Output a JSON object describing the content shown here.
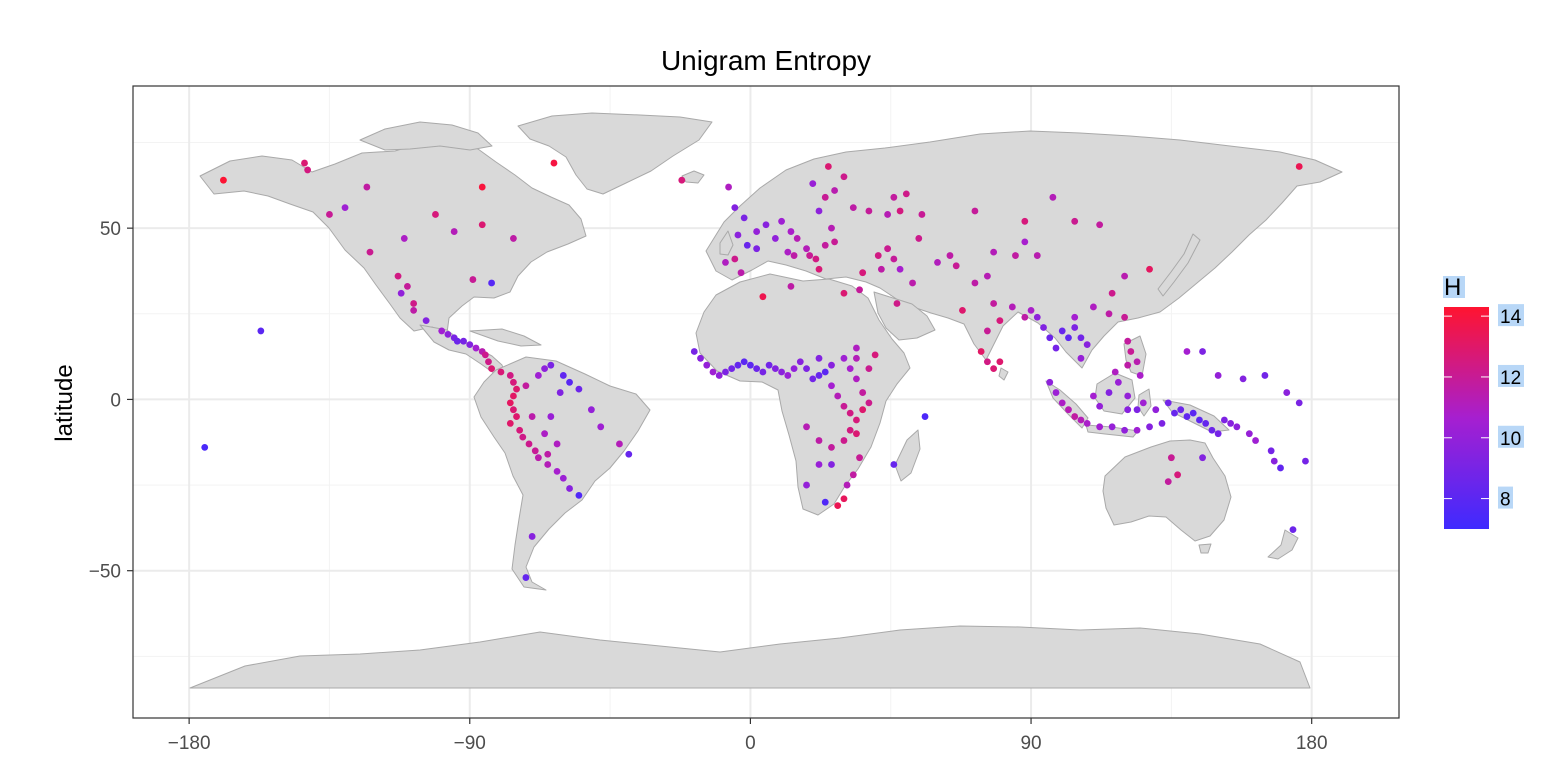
{
  "colors": {
    "low": "#3f2aff",
    "mid": "#a61fd0",
    "high": "#ff1430",
    "land": "#d9d9d9",
    "land_border": "#a9a9a9",
    "grid": "#ebebeb",
    "legend_label_bg": "#b8d7f7"
  },
  "chart_data": {
    "type": "scatter",
    "title": "Unigram Entropy",
    "xlabel": "",
    "ylabel": "latitude",
    "xlim": [
      -198,
      208
    ],
    "ylim": [
      -93,
      91.5
    ],
    "x_ticks": [
      -180,
      -90,
      0,
      90,
      180
    ],
    "x_tick_labels": [
      "−180",
      "−90",
      "0",
      "90",
      "180"
    ],
    "y_ticks": [
      -50,
      0,
      50
    ],
    "y_tick_labels": [
      "−50",
      "0",
      "50"
    ],
    "grid": true,
    "legend": {
      "title": "H",
      "position": "right",
      "range": [
        7,
        14.3
      ],
      "ticks": [
        8,
        10,
        12,
        14
      ],
      "tick_labels": [
        "8",
        "10",
        "12",
        "14"
      ]
    },
    "points": [
      [
        -169,
        64,
        14.2
      ],
      [
        -143,
        69,
        12.8
      ],
      [
        -142,
        67,
        12.5
      ],
      [
        -123,
        62,
        11.7
      ],
      [
        -130,
        56,
        10.4
      ],
      [
        -135,
        54,
        12.0
      ],
      [
        -101,
        54,
        12.6
      ],
      [
        -111,
        47,
        10.9
      ],
      [
        -122,
        43,
        12.1
      ],
      [
        -95,
        49,
        11.2
      ],
      [
        -86,
        62,
        14.0
      ],
      [
        -63,
        69,
        13.9
      ],
      [
        -86,
        51,
        12.8
      ],
      [
        -76,
        47,
        11.6
      ],
      [
        -89,
        35,
        12.0
      ],
      [
        -83,
        34,
        7.8
      ],
      [
        -113,
        36,
        12.4
      ],
      [
        -110,
        33,
        11.9
      ],
      [
        -112,
        31,
        9.9
      ],
      [
        -108,
        28,
        12.3
      ],
      [
        -108,
        26,
        11.6
      ],
      [
        -104,
        23,
        9.4
      ],
      [
        -99,
        20,
        10.5
      ],
      [
        -97,
        19,
        9.8
      ],
      [
        -95,
        18,
        9.1
      ],
      [
        -94,
        17,
        8.6
      ],
      [
        -92,
        17,
        9.0
      ],
      [
        -90,
        16,
        9.4
      ],
      [
        -88,
        15,
        10.6
      ],
      [
        -86,
        14,
        11.4
      ],
      [
        -85,
        13,
        12.2
      ],
      [
        -84,
        11,
        12.3
      ],
      [
        -83,
        9,
        12.8
      ],
      [
        -80,
        8,
        12.7
      ],
      [
        -77,
        7,
        12.4
      ],
      [
        -76,
        5,
        12.6
      ],
      [
        -75,
        3,
        12.9
      ],
      [
        -76,
        1,
        13.1
      ],
      [
        -77,
        -1,
        13.2
      ],
      [
        -76,
        -3,
        12.8
      ],
      [
        -75,
        -5,
        12.9
      ],
      [
        -77,
        -7,
        13.0
      ],
      [
        -74,
        -9,
        12.6
      ],
      [
        -73,
        -11,
        12.3
      ],
      [
        -71,
        -13,
        12.2
      ],
      [
        -69,
        -15,
        12.0
      ],
      [
        -68,
        -17,
        11.5
      ],
      [
        -65,
        -19,
        11.2
      ],
      [
        -62,
        -21,
        10.7
      ],
      [
        -60,
        -23,
        10.3
      ],
      [
        -58,
        -26,
        9.6
      ],
      [
        -55,
        -28,
        7.6
      ],
      [
        -65,
        -16,
        11.6
      ],
      [
        -62,
        -13,
        11.0
      ],
      [
        -66,
        -10,
        10.9
      ],
      [
        -64,
        -5,
        10.2
      ],
      [
        -61,
        2,
        9.3
      ],
      [
        -58,
        5,
        7.9
      ],
      [
        -55,
        3,
        8.6
      ],
      [
        -51,
        -3,
        10.0
      ],
      [
        -48,
        -8,
        10.4
      ],
      [
        -42,
        -13,
        11.2
      ],
      [
        -39,
        -16,
        8.4
      ],
      [
        -70,
        -5,
        11.5
      ],
      [
        -72,
        4,
        11.8
      ],
      [
        -68,
        7,
        10.4
      ],
      [
        -66,
        9,
        9.8
      ],
      [
        -64,
        10,
        9.1
      ],
      [
        -60,
        7,
        8.2
      ],
      [
        -70,
        -40,
        9.6
      ],
      [
        -72,
        -52,
        8.3
      ],
      [
        -157,
        20,
        8.0
      ],
      [
        -175,
        -14,
        7.4
      ],
      [
        -18,
        14,
        9.0
      ],
      [
        -16,
        12,
        9.6
      ],
      [
        -14,
        10,
        10.0
      ],
      [
        -12,
        8,
        10.4
      ],
      [
        -10,
        7,
        9.9
      ],
      [
        -8,
        8,
        9.2
      ],
      [
        -6,
        9,
        8.8
      ],
      [
        -4,
        10,
        8.3
      ],
      [
        -2,
        11,
        8.0
      ],
      [
        0,
        10,
        8.1
      ],
      [
        2,
        9,
        8.6
      ],
      [
        4,
        8,
        9.0
      ],
      [
        6,
        10,
        8.8
      ],
      [
        8,
        9,
        9.4
      ],
      [
        10,
        8,
        9.7
      ],
      [
        12,
        7,
        10.2
      ],
      [
        14,
        9,
        9.9
      ],
      [
        16,
        11,
        9.6
      ],
      [
        18,
        9,
        9.2
      ],
      [
        20,
        6,
        8.8
      ],
      [
        22,
        7,
        8.4
      ],
      [
        24,
        8,
        8.0
      ],
      [
        26,
        4,
        10.6
      ],
      [
        28,
        1,
        11.2
      ],
      [
        30,
        -2,
        12.0
      ],
      [
        32,
        -4,
        12.4
      ],
      [
        34,
        -6,
        12.6
      ],
      [
        36,
        -3,
        12.9
      ],
      [
        38,
        -1,
        12.2
      ],
      [
        36,
        2,
        11.8
      ],
      [
        34,
        6,
        11.0
      ],
      [
        32,
        9,
        10.7
      ],
      [
        34,
        12,
        11.2
      ],
      [
        38,
        9,
        12.1
      ],
      [
        40,
        13,
        12.6
      ],
      [
        34,
        15,
        11.0
      ],
      [
        30,
        12,
        10.4
      ],
      [
        26,
        10,
        9.6
      ],
      [
        22,
        12,
        9.4
      ],
      [
        18,
        -8,
        11.3
      ],
      [
        22,
        -12,
        11.6
      ],
      [
        26,
        -14,
        11.8
      ],
      [
        30,
        -12,
        12.2
      ],
      [
        32,
        -9,
        12.5
      ],
      [
        34,
        -10,
        12.8
      ],
      [
        35,
        -17,
        12.0
      ],
      [
        33,
        -22,
        11.7
      ],
      [
        31,
        -25,
        11.2
      ],
      [
        30,
        -29,
        13.3
      ],
      [
        28,
        -31,
        13.5
      ],
      [
        18,
        -25,
        10.0
      ],
      [
        22,
        -19,
        10.2
      ],
      [
        26,
        -19,
        9.4
      ],
      [
        24,
        -30,
        7.6
      ],
      [
        46,
        -19,
        8.4
      ],
      [
        56,
        -5,
        7.5
      ],
      [
        4,
        30,
        13.6
      ],
      [
        13,
        33,
        11.6
      ],
      [
        30,
        31,
        12.8
      ],
      [
        35,
        32,
        11.9
      ],
      [
        47,
        28,
        12.3
      ],
      [
        36,
        37,
        12.6
      ],
      [
        -7,
        62,
        11.0
      ],
      [
        -22,
        64,
        12.6
      ],
      [
        -5,
        56,
        9.4
      ],
      [
        -2,
        53,
        9.1
      ],
      [
        -4,
        48,
        9.7
      ],
      [
        -1,
        45,
        8.5
      ],
      [
        2,
        44,
        9.2
      ],
      [
        -5,
        41,
        12.2
      ],
      [
        -8,
        40,
        11.0
      ],
      [
        -3,
        37,
        11.5
      ],
      [
        2,
        49,
        10.0
      ],
      [
        5,
        51,
        9.6
      ],
      [
        8,
        47,
        9.9
      ],
      [
        10,
        52,
        10.4
      ],
      [
        13,
        49,
        10.8
      ],
      [
        15,
        47,
        11.3
      ],
      [
        12,
        43,
        10.9
      ],
      [
        14,
        42,
        11.6
      ],
      [
        18,
        44,
        11.2
      ],
      [
        19,
        42,
        12.0
      ],
      [
        21,
        41,
        12.4
      ],
      [
        22,
        38,
        12.7
      ],
      [
        24,
        45,
        11.8
      ],
      [
        27,
        46,
        12.0
      ],
      [
        26,
        50,
        11.3
      ],
      [
        22,
        55,
        9.8
      ],
      [
        24,
        59,
        12.0
      ],
      [
        27,
        61,
        11.4
      ],
      [
        20,
        63,
        10.2
      ],
      [
        25,
        68,
        12.8
      ],
      [
        30,
        65,
        12.2
      ],
      [
        33,
        56,
        11.6
      ],
      [
        38,
        55,
        11.9
      ],
      [
        44,
        54,
        11.3
      ],
      [
        48,
        55,
        12.5
      ],
      [
        46,
        59,
        11.8
      ],
      [
        50,
        60,
        12.3
      ],
      [
        55,
        54,
        12.0
      ],
      [
        44,
        44,
        12.1
      ],
      [
        41,
        42,
        12.4
      ],
      [
        46,
        41,
        11.9
      ],
      [
        42,
        38,
        11.6
      ],
      [
        48,
        38,
        10.7
      ],
      [
        52,
        34,
        11.5
      ],
      [
        60,
        40,
        11.1
      ],
      [
        66,
        39,
        12.0
      ],
      [
        68,
        26,
        12.9
      ],
      [
        72,
        34,
        11.6
      ],
      [
        76,
        36,
        11.3
      ],
      [
        78,
        28,
        11.8
      ],
      [
        80,
        23,
        12.6
      ],
      [
        76,
        20,
        12.0
      ],
      [
        74,
        14,
        13.1
      ],
      [
        76,
        11,
        12.4
      ],
      [
        78,
        9,
        12.8
      ],
      [
        80,
        11,
        12.9
      ],
      [
        84,
        27,
        11.2
      ],
      [
        88,
        24,
        11.6
      ],
      [
        90,
        26,
        10.8
      ],
      [
        92,
        24,
        9.8
      ],
      [
        94,
        21,
        9.3
      ],
      [
        96,
        18,
        8.6
      ],
      [
        98,
        15,
        8.9
      ],
      [
        100,
        20,
        8.4
      ],
      [
        102,
        18,
        8.1
      ],
      [
        104,
        21,
        9.2
      ],
      [
        106,
        18,
        8.8
      ],
      [
        108,
        16,
        9.6
      ],
      [
        106,
        12,
        10.1
      ],
      [
        104,
        24,
        10.6
      ],
      [
        110,
        27,
        11.0
      ],
      [
        115,
        25,
        11.6
      ],
      [
        120,
        24,
        12.0
      ],
      [
        116,
        31,
        12.2
      ],
      [
        120,
        36,
        11.4
      ],
      [
        128,
        38,
        13.2
      ],
      [
        97,
        59,
        11.2
      ],
      [
        88,
        52,
        12.6
      ],
      [
        104,
        52,
        12.1
      ],
      [
        112,
        51,
        11.8
      ],
      [
        88,
        46,
        10.7
      ],
      [
        72,
        55,
        11.9
      ],
      [
        54,
        47,
        12.2
      ],
      [
        92,
        42,
        11.4
      ],
      [
        85,
        42,
        11.7
      ],
      [
        78,
        43,
        11.2
      ],
      [
        64,
        42,
        11.6
      ],
      [
        176,
        68,
        13.5
      ],
      [
        96,
        5,
        9.8
      ],
      [
        98,
        2,
        10.3
      ],
      [
        100,
        -1,
        10.9
      ],
      [
        102,
        -3,
        11.3
      ],
      [
        104,
        -5,
        11.7
      ],
      [
        106,
        -6,
        11.2
      ],
      [
        108,
        -7,
        10.8
      ],
      [
        112,
        -8,
        10.5
      ],
      [
        116,
        -8,
        10.1
      ],
      [
        120,
        -9,
        9.9
      ],
      [
        124,
        -9,
        10.4
      ],
      [
        128,
        -8,
        9.5
      ],
      [
        132,
        -7,
        9.2
      ],
      [
        110,
        1,
        10.6
      ],
      [
        112,
        -2,
        10.0
      ],
      [
        115,
        2,
        9.4
      ],
      [
        118,
        5,
        10.2
      ],
      [
        117,
        8,
        11.0
      ],
      [
        121,
        10,
        11.6
      ],
      [
        122,
        14,
        12.0
      ],
      [
        121,
        17,
        11.8
      ],
      [
        124,
        11,
        11.4
      ],
      [
        125,
        7,
        10.8
      ],
      [
        121,
        1,
        10.0
      ],
      [
        121,
        -3,
        9.6
      ],
      [
        124,
        -3,
        9.2
      ],
      [
        126,
        -1,
        10.4
      ],
      [
        130,
        -3,
        9.9
      ],
      [
        134,
        -1,
        8.8
      ],
      [
        136,
        -4,
        8.4
      ],
      [
        138,
        -3,
        8.6
      ],
      [
        140,
        -5,
        8.2
      ],
      [
        142,
        -4,
        8.0
      ],
      [
        144,
        -6,
        8.1
      ],
      [
        146,
        -7,
        8.3
      ],
      [
        148,
        -9,
        8.6
      ],
      [
        150,
        -10,
        8.9
      ],
      [
        152,
        -6,
        9.2
      ],
      [
        154,
        -7,
        9.6
      ],
      [
        156,
        -8,
        9.8
      ],
      [
        160,
        -10,
        10.1
      ],
      [
        162,
        -12,
        10.4
      ],
      [
        135,
        -17,
        12.0
      ],
      [
        137,
        -22,
        12.6
      ],
      [
        134,
        -24,
        11.8
      ],
      [
        145,
        -17,
        9.4
      ],
      [
        167,
        -15,
        8.9
      ],
      [
        168,
        -18,
        9.6
      ],
      [
        170,
        -20,
        8.2
      ],
      [
        178,
        -18,
        8.9
      ],
      [
        174,
        -38,
        8.6
      ],
      [
        140,
        14,
        10.6
      ],
      [
        145,
        14,
        9.2
      ],
      [
        150,
        7,
        10.0
      ],
      [
        158,
        6,
        9.4
      ],
      [
        165,
        7,
        8.8
      ],
      [
        172,
        2,
        9.7
      ],
      [
        176,
        -1,
        9.1
      ]
    ]
  }
}
